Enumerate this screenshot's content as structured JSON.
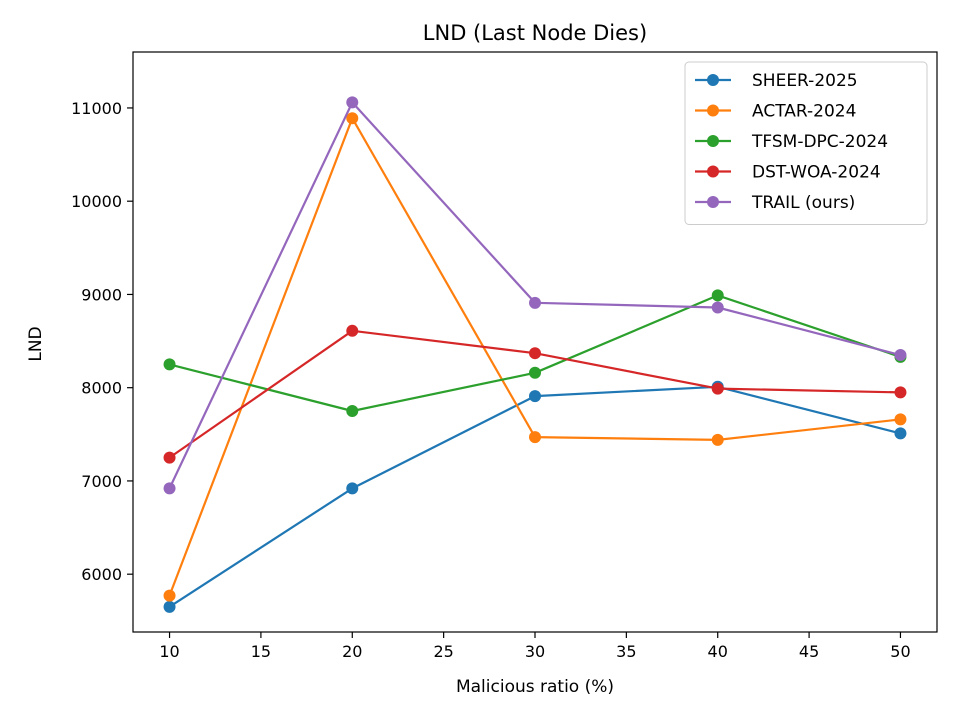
{
  "chart_data": {
    "type": "line",
    "title": "LND (Last Node Dies)",
    "xlabel": "Malicious ratio (%)",
    "ylabel": "LND",
    "x": [
      10,
      20,
      30,
      40,
      50
    ],
    "xticks": [
      10,
      15,
      20,
      25,
      30,
      35,
      40,
      45,
      50
    ],
    "yticks": [
      6000,
      7000,
      8000,
      9000,
      10000,
      11000
    ],
    "xlim": [
      8,
      52
    ],
    "ylim": [
      5380,
      11600
    ],
    "grid": false,
    "legend_position": "top-right",
    "series": [
      {
        "name": "SHEER-2025",
        "color": "#1f77b4",
        "values": [
          5650,
          6920,
          7910,
          8010,
          7510
        ]
      },
      {
        "name": "ACTAR-2024",
        "color": "#ff7f0e",
        "values": [
          5770,
          10890,
          7470,
          7440,
          7660
        ]
      },
      {
        "name": "TFSM-DPC-2024",
        "color": "#2ca02c",
        "values": [
          8250,
          7750,
          8160,
          8990,
          8330
        ]
      },
      {
        "name": "DST-WOA-2024",
        "color": "#d62728",
        "values": [
          7250,
          8610,
          8370,
          7990,
          7950
        ]
      },
      {
        "name": "TRAIL (ours)",
        "color": "#9467bd",
        "values": [
          6920,
          11060,
          8910,
          8860,
          8350
        ]
      }
    ]
  }
}
